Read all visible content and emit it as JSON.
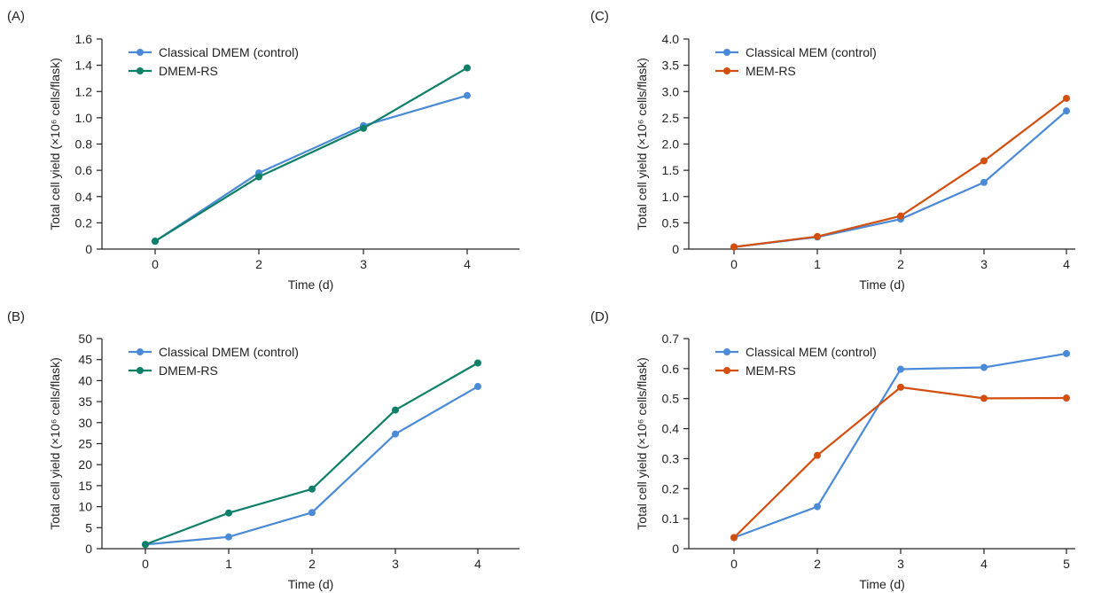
{
  "colors": {
    "blue": "#4a8ad6",
    "green": "#0e7f68",
    "orange": "#d24f10",
    "axis": "#222222"
  },
  "chart_data": [
    {
      "panel_label": "(A)",
      "type": "line",
      "x": [
        "0",
        "2",
        "3",
        "4"
      ],
      "xlabel": "Time (d)",
      "ylabel": "Total cell yield (×10⁶ cells/flask)",
      "ylim": [
        0,
        1.6
      ],
      "yticks": [
        "0",
        "0.2",
        "0.4",
        "0.6",
        "0.8",
        "1.0",
        "1.2",
        "1.4",
        "1.6"
      ],
      "legend_position": "top-left",
      "series": [
        {
          "name": "Classical DMEM (control)",
          "color": "blue",
          "values": [
            0.06,
            0.58,
            0.94,
            1.17
          ]
        },
        {
          "name": "DMEM-RS",
          "color": "green",
          "values": [
            0.06,
            0.55,
            0.92,
            1.38
          ]
        }
      ]
    },
    {
      "panel_label": "(B)",
      "type": "line",
      "x": [
        "0",
        "1",
        "2",
        "3",
        "4"
      ],
      "xlabel": "Time (d)",
      "ylabel": "Total cell yield (×10⁶ cells/flask)",
      "ylim": [
        0,
        50
      ],
      "yticks": [
        "0",
        "5",
        "10",
        "15",
        "20",
        "25",
        "30",
        "35",
        "40",
        "45",
        "50"
      ],
      "legend_position": "top-left",
      "series": [
        {
          "name": "Classical DMEM (control)",
          "color": "blue",
          "values": [
            1.0,
            2.8,
            8.6,
            27.3,
            38.6
          ]
        },
        {
          "name": "DMEM-RS",
          "color": "green",
          "values": [
            1.0,
            8.5,
            14.2,
            33.0,
            44.2
          ]
        }
      ]
    },
    {
      "panel_label": "(C)",
      "type": "line",
      "x": [
        "0",
        "1",
        "2",
        "3",
        "4"
      ],
      "xlabel": "Time (d)",
      "ylabel": "Total cell yield (×10⁶ cells/flask)",
      "ylim": [
        0,
        4.0
      ],
      "yticks": [
        "0",
        "0.5",
        "1.0",
        "1.5",
        "2.0",
        "2.5",
        "3.0",
        "3.5",
        "4.0"
      ],
      "legend_position": "top-left",
      "series": [
        {
          "name": "Classical MEM (control)",
          "color": "blue",
          "values": [
            0.04,
            0.23,
            0.57,
            1.27,
            2.63
          ]
        },
        {
          "name": "MEM-RS",
          "color": "orange",
          "values": [
            0.04,
            0.24,
            0.63,
            1.68,
            2.87
          ]
        }
      ]
    },
    {
      "panel_label": "(D)",
      "type": "line",
      "x": [
        "0",
        "2",
        "3",
        "4",
        "5"
      ],
      "xlabel": "Time (d)",
      "ylabel": "Total cell yield (×10⁶ cells/flask)",
      "ylim": [
        0,
        0.7
      ],
      "yticks": [
        "0",
        "0.1",
        "0.2",
        "0.3",
        "0.4",
        "0.5",
        "0.6",
        "0.7"
      ],
      "legend_position": "top-left",
      "series": [
        {
          "name": "Classical MEM (control)",
          "color": "blue",
          "values": [
            0.037,
            0.14,
            0.598,
            0.604,
            0.65
          ]
        },
        {
          "name": "MEM-RS",
          "color": "orange",
          "values": [
            0.037,
            0.311,
            0.538,
            0.501,
            0.502
          ]
        }
      ]
    }
  ]
}
